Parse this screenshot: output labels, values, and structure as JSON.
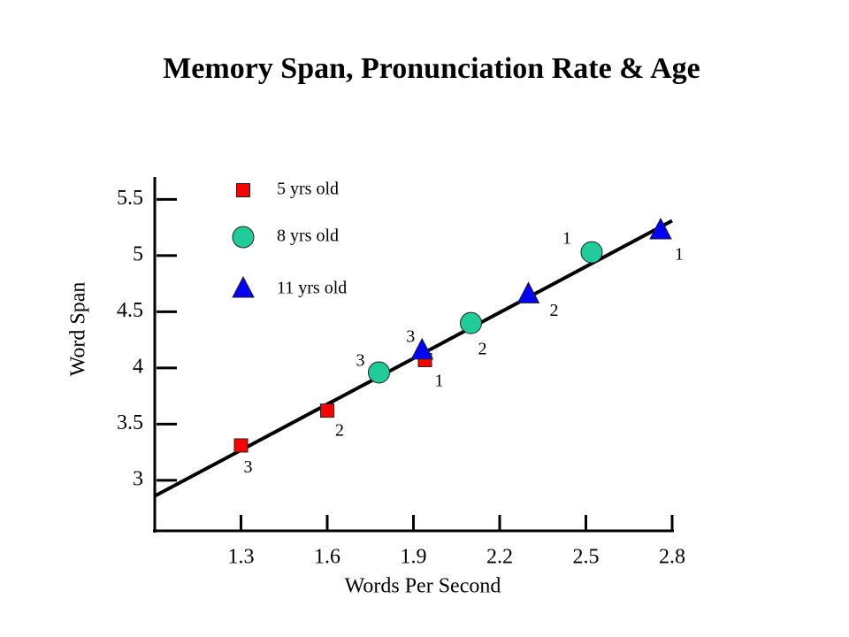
{
  "chart_data": {
    "type": "scatter",
    "title": "Memory Span, Pronunciation Rate & Age",
    "x_label": "Words Per Second",
    "y_label": "Word Span",
    "xlim": [
      1.0,
      2.8
    ],
    "ylim": [
      2.55,
      5.7
    ],
    "xticks": [
      1.3,
      1.6,
      1.9,
      2.2,
      2.5,
      2.8
    ],
    "yticks": [
      3,
      3.5,
      4,
      4.5,
      5,
      5.5
    ],
    "grid": false,
    "legend": "upper left",
    "series": [
      {
        "name": "5 yrs old",
        "color": "#ff0000",
        "marker": "square",
        "x": [
          1.3,
          1.6,
          1.94
        ],
        "values": [
          3.31,
          3.62,
          4.07
        ],
        "point_labels": [
          "3",
          "2",
          "1"
        ]
      },
      {
        "name": "8 yrs old",
        "color": "#1fcc9a",
        "marker": "circle",
        "x": [
          1.78,
          2.1,
          2.52
        ],
        "values": [
          3.96,
          4.4,
          5.03
        ],
        "point_labels": [
          "3",
          "2",
          "1"
        ]
      },
      {
        "name": "11 yrs old",
        "color": "#0000ff",
        "marker": "triangle",
        "x": [
          1.93,
          2.3,
          2.76
        ],
        "values": [
          4.15,
          4.65,
          5.22
        ],
        "point_labels": [
          "3",
          "2",
          "1"
        ]
      }
    ],
    "trend_line": {
      "x": [
        1.0,
        2.8
      ],
      "y": [
        2.86,
        5.31
      ],
      "color": "#000000"
    }
  }
}
